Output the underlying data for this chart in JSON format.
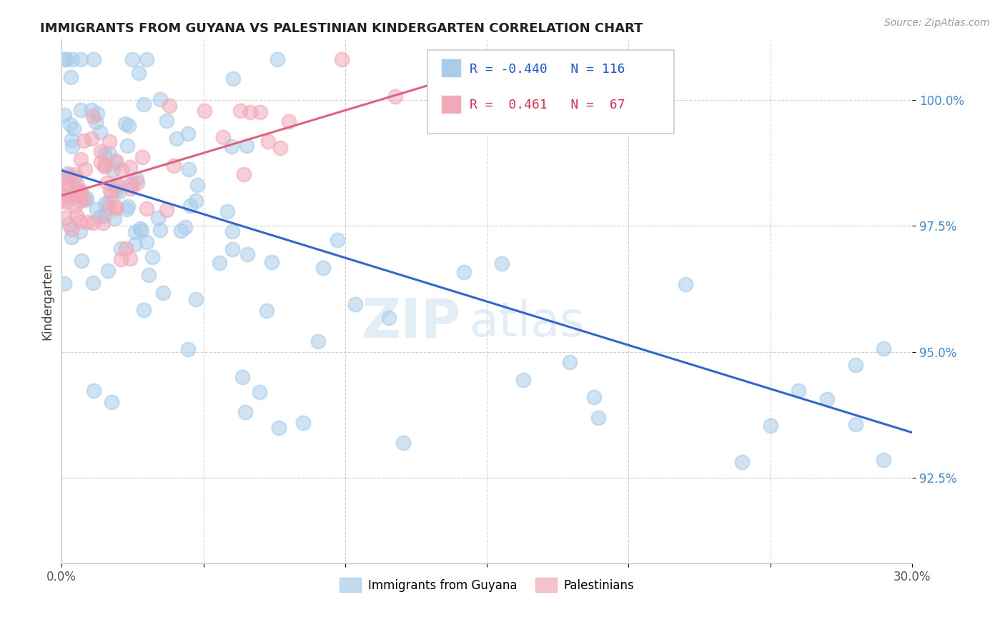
{
  "title": "IMMIGRANTS FROM GUYANA VS PALESTINIAN KINDERGARTEN CORRELATION CHART",
  "source": "Source: ZipAtlas.com",
  "ylabel": "Kindergarten",
  "xmin": 0.0,
  "xmax": 0.3,
  "ymin": 90.8,
  "ymax": 101.2,
  "watermark_zip": "ZIP",
  "watermark_atlas": "atlas",
  "legend_blue_label": "Immigrants from Guyana",
  "legend_pink_label": "Palestinians",
  "blue_R": "-0.440",
  "blue_N": "116",
  "pink_R": "0.461",
  "pink_N": "67",
  "blue_color": "#A8CCEA",
  "pink_color": "#F2A8B8",
  "blue_line_color": "#3366CC",
  "pink_line_color": "#E06080",
  "blue_line_x0": 0.0,
  "blue_line_y0": 98.6,
  "blue_line_x1": 0.3,
  "blue_line_y1": 93.4,
  "pink_line_x0": 0.0,
  "pink_line_y0": 98.1,
  "pink_line_x1": 0.13,
  "pink_line_y1": 100.3,
  "yticks": [
    92.5,
    95.0,
    97.5,
    100.0
  ],
  "ytick_labels": [
    "92.5%",
    "95.0%",
    "97.5%",
    "100.0%"
  ]
}
